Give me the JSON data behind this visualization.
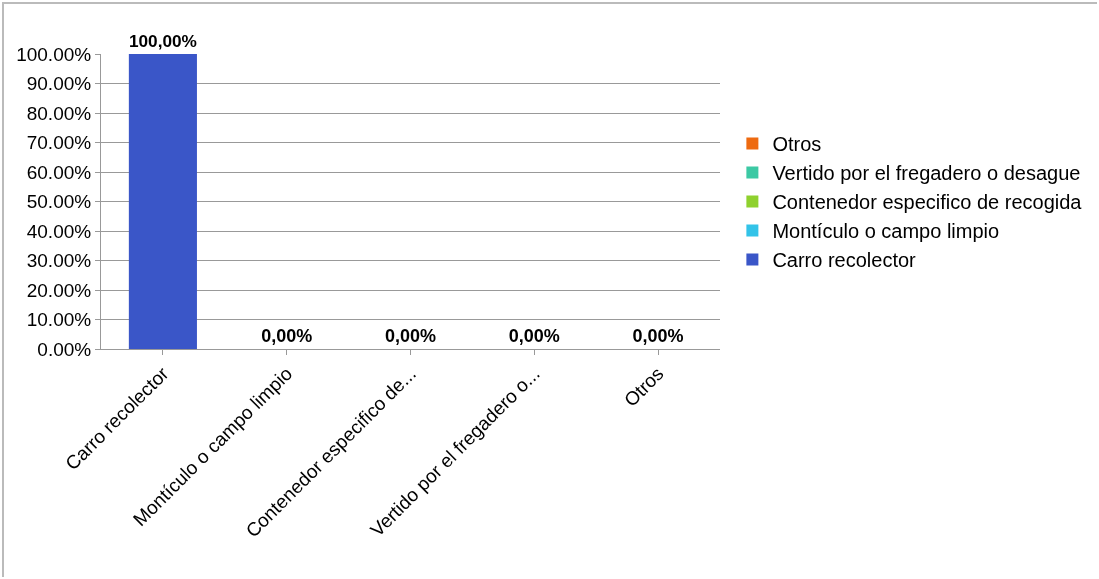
{
  "chart_data": {
    "type": "bar",
    "categories": [
      "Carro recolector",
      "Montículo o campo limpio",
      "Contenedor especifico de...",
      "Vertido por el fregadero o...",
      "Otros"
    ],
    "series": [
      {
        "name": "Carro recolector",
        "color": "#3a56c8",
        "values": [
          100,
          null,
          null,
          null,
          null
        ],
        "value_labels": [
          "100,00%",
          null,
          null,
          null,
          null
        ]
      },
      {
        "name": "Montículo o campo limpio",
        "color": "#33c3e8",
        "values": [
          null,
          0,
          null,
          null,
          null
        ],
        "value_labels": [
          null,
          "0,00%",
          null,
          null,
          null
        ]
      },
      {
        "name": "Contenedor especifico de recogida",
        "color": "#8fd12e",
        "values": [
          null,
          null,
          0,
          null,
          null
        ],
        "value_labels": [
          null,
          null,
          "0,00%",
          null,
          null
        ]
      },
      {
        "name": "Vertido por el fregadero o desague",
        "color": "#3cc9a4",
        "values": [
          null,
          null,
          null,
          0,
          null
        ],
        "value_labels": [
          null,
          null,
          null,
          "0,00%",
          null
        ]
      },
      {
        "name": "Otros",
        "color": "#ee6a10",
        "values": [
          null,
          null,
          null,
          null,
          0
        ],
        "value_labels": [
          null,
          null,
          null,
          null,
          "0,00%"
        ]
      }
    ],
    "ylim": [
      0,
      100
    ],
    "yticks": [
      {
        "value": 0,
        "label": "0.00%"
      },
      {
        "value": 10,
        "label": "10.00%"
      },
      {
        "value": 20,
        "label": "20.00%"
      },
      {
        "value": 30,
        "label": "30.00%"
      },
      {
        "value": 40,
        "label": "40.00%"
      },
      {
        "value": 50,
        "label": "50.00%"
      },
      {
        "value": 60,
        "label": "60.00%"
      },
      {
        "value": 70,
        "label": "70.00%"
      },
      {
        "value": 80,
        "label": "80.00%"
      },
      {
        "value": 90,
        "label": "90.00%"
      },
      {
        "value": 100,
        "label": "100.00%"
      }
    ],
    "grid": "y",
    "legend": "right"
  }
}
